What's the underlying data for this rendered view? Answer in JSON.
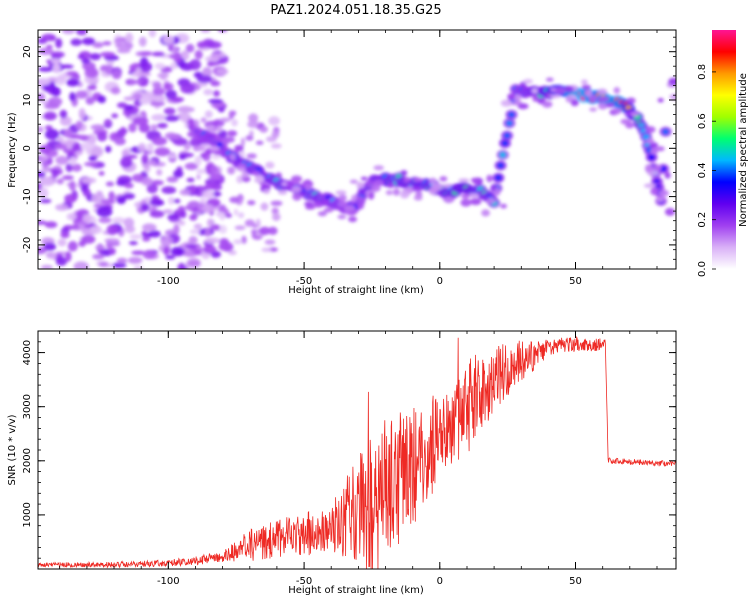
{
  "title": "PAZ1.2024.051.18.35.G25",
  "chart_data": [
    {
      "type": "heatmap",
      "xlabel": "Height of straight line (km)",
      "ylabel": "Frequency (Hz)",
      "xlim": [
        -148,
        87
      ],
      "ylim": [
        -25,
        24.5
      ],
      "xticks": [
        -100,
        -50,
        0,
        50
      ],
      "yticks": [
        -20,
        -10,
        0,
        10,
        20
      ],
      "colorbar": {
        "label": "Normalized spectral amplitude",
        "ticks": [
          0.0,
          0.2,
          0.4,
          0.6,
          0.8
        ],
        "range": [
          0,
          0.97
        ],
        "colors": [
          "#ffffff",
          "#d9b0f7",
          "#a040f0",
          "#6000f0",
          "#0000ff",
          "#00b8ff",
          "#00ff70",
          "#a0ff00",
          "#ffff00",
          "#ff9900",
          "#ff0000",
          "#ff1493"
        ]
      },
      "ridge": [
        {
          "x": -90,
          "y": 3,
          "amp": 0.35
        },
        {
          "x": -85,
          "y": 2,
          "amp": 0.4
        },
        {
          "x": -80,
          "y": 0,
          "amp": 0.38
        },
        {
          "x": -75,
          "y": -2.5,
          "amp": 0.42
        },
        {
          "x": -70,
          "y": -4,
          "amp": 0.45
        },
        {
          "x": -65,
          "y": -5.5,
          "amp": 0.45
        },
        {
          "x": -60,
          "y": -7,
          "amp": 0.48
        },
        {
          "x": -55,
          "y": -8,
          "amp": 0.45
        },
        {
          "x": -50,
          "y": -9,
          "amp": 0.45
        },
        {
          "x": -45,
          "y": -10,
          "amp": 0.45
        },
        {
          "x": -40,
          "y": -11,
          "amp": 0.42
        },
        {
          "x": -35,
          "y": -12,
          "amp": 0.4
        },
        {
          "x": -32,
          "y": -12.5,
          "amp": 0.35
        },
        {
          "x": -28,
          "y": -9,
          "amp": 0.42
        },
        {
          "x": -25,
          "y": -7,
          "amp": 0.45
        },
        {
          "x": -20,
          "y": -6.5,
          "amp": 0.5
        },
        {
          "x": -15,
          "y": -6.5,
          "amp": 0.5
        },
        {
          "x": -10,
          "y": -7,
          "amp": 0.5
        },
        {
          "x": -5,
          "y": -7.5,
          "amp": 0.52
        },
        {
          "x": 0,
          "y": -8.5,
          "amp": 0.5
        },
        {
          "x": 5,
          "y": -9,
          "amp": 0.52
        },
        {
          "x": 10,
          "y": -8.5,
          "amp": 0.55
        },
        {
          "x": 15,
          "y": -9,
          "amp": 0.5
        },
        {
          "x": 20,
          "y": -11,
          "amp": 0.45
        },
        {
          "x": 28,
          "y": 12,
          "amp": 0.4
        },
        {
          "x": 33,
          "y": 11.5,
          "amp": 0.45
        },
        {
          "x": 38,
          "y": 11.5,
          "amp": 0.5
        },
        {
          "x": 43,
          "y": 11.5,
          "amp": 0.7
        },
        {
          "x": 48,
          "y": 11.5,
          "amp": 0.92
        },
        {
          "x": 53,
          "y": 11,
          "amp": 0.97
        },
        {
          "x": 58,
          "y": 10.5,
          "amp": 0.9
        },
        {
          "x": 63,
          "y": 10,
          "amp": 0.95
        },
        {
          "x": 68,
          "y": 9,
          "amp": 0.9
        },
        {
          "x": 72,
          "y": 7,
          "amp": 0.6
        },
        {
          "x": 76,
          "y": 2,
          "amp": 0.45
        },
        {
          "x": 78,
          "y": -2,
          "amp": 0.42
        },
        {
          "x": 80,
          "y": -7,
          "amp": 0.4
        },
        {
          "x": 81.5,
          "y": -11,
          "amp": 0.35
        },
        {
          "x": 84,
          "y": 11,
          "amp": 0.45
        }
      ]
    },
    {
      "type": "line",
      "xlabel": "Height of straight line (km)",
      "ylabel": "SNR (10 * v/v)",
      "xlim": [
        -148,
        87
      ],
      "ylim": [
        0,
        4400
      ],
      "xticks": [
        -100,
        -50,
        0,
        50
      ],
      "yticks": [
        1000,
        2000,
        3000,
        4000
      ],
      "color": "#ee2a24",
      "series": [
        {
          "envelope": {
            "x": [
              -148,
              -120,
              -100,
              -90,
              -80,
              -75,
              -70,
              -65,
              -60,
              -55,
              -50,
              -45,
              -40,
              -35,
              -30,
              -25,
              -20,
              -15,
              -10,
              -5,
              0,
              5,
              10,
              15,
              20,
              25,
              30,
              35,
              40,
              45,
              50,
              55,
              60,
              61,
              62,
              70,
              80,
              87
            ],
            "y": [
              80,
              80,
              110,
              150,
              230,
              330,
              430,
              500,
              560,
              600,
              640,
              700,
              800,
              900,
              1100,
              1300,
              1500,
              1700,
              1900,
              2100,
              2400,
              2700,
              2950,
              3200,
              3500,
              3700,
              3850,
              3950,
              4100,
              4150,
              4150,
              4150,
              4150,
              4150,
              2000,
              1980,
              1950,
              1960
            ]
          },
          "noise": {
            "x": [
              -148,
              -100,
              -80,
              -70,
              -60,
              -50,
              -40,
              -34,
              -30,
              -25,
              -20,
              -10,
              0,
              10,
              20,
              30,
              40,
              60,
              62,
              87
            ],
            "y": [
              40,
              60,
              100,
              300,
              350,
              400,
              450,
              800,
              1000,
              1600,
              1400,
              1100,
              900,
              900,
              600,
              400,
              150,
              120,
              60,
              50
            ]
          }
        }
      ]
    }
  ]
}
